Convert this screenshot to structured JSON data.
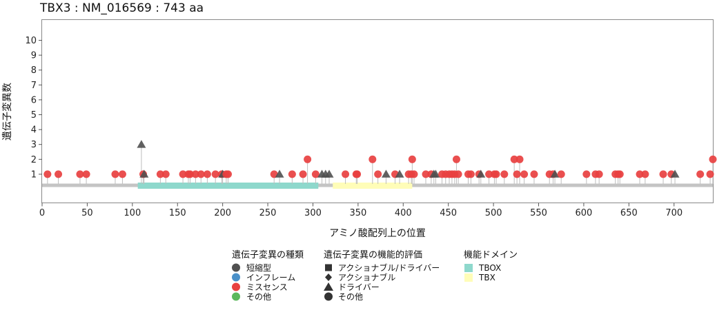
{
  "chart_data": {
    "type": "lollipop",
    "title": "TBX3 : NM_016569 : 743 aa",
    "xlabel": "アミノ酸配列上の位置",
    "ylabel": "遺伝子変異数",
    "xlim": [
      0,
      743
    ],
    "ylim": [
      0,
      10
    ],
    "x_ticks": [
      0,
      50,
      100,
      150,
      200,
      250,
      300,
      350,
      400,
      450,
      500,
      550,
      600,
      650,
      700
    ],
    "y_ticks": [
      1,
      2,
      3,
      4,
      5,
      6,
      7,
      8,
      9,
      10
    ],
    "protein_length": 743,
    "domains": [
      {
        "name": "TBOX",
        "start": 106,
        "end": 306,
        "color": "#8ED8CC"
      },
      {
        "name": "TBX",
        "start": 322,
        "end": 410,
        "color": "#FFFDB8"
      }
    ],
    "mutations": [
      {
        "pos": 6,
        "count": 1,
        "type": "missense",
        "shape": "circle"
      },
      {
        "pos": 18,
        "count": 1,
        "type": "missense",
        "shape": "circle"
      },
      {
        "pos": 42,
        "count": 1,
        "type": "missense",
        "shape": "circle"
      },
      {
        "pos": 49,
        "count": 1,
        "type": "missense",
        "shape": "circle"
      },
      {
        "pos": 81,
        "count": 1,
        "type": "missense",
        "shape": "circle"
      },
      {
        "pos": 89,
        "count": 1,
        "type": "missense",
        "shape": "circle"
      },
      {
        "pos": 110,
        "count": 3,
        "type": "truncating",
        "shape": "triangle"
      },
      {
        "pos": 112,
        "count": 1,
        "type": "missense",
        "shape": "circle"
      },
      {
        "pos": 113,
        "count": 1,
        "type": "truncating",
        "shape": "triangle"
      },
      {
        "pos": 131,
        "count": 1,
        "type": "missense",
        "shape": "circle"
      },
      {
        "pos": 137,
        "count": 1,
        "type": "missense",
        "shape": "circle"
      },
      {
        "pos": 156,
        "count": 1,
        "type": "missense",
        "shape": "circle"
      },
      {
        "pos": 162,
        "count": 1,
        "type": "missense",
        "shape": "circle"
      },
      {
        "pos": 164,
        "count": 1,
        "type": "missense",
        "shape": "circle"
      },
      {
        "pos": 170,
        "count": 1,
        "type": "missense",
        "shape": "circle"
      },
      {
        "pos": 176,
        "count": 1,
        "type": "missense",
        "shape": "circle"
      },
      {
        "pos": 183,
        "count": 1,
        "type": "missense",
        "shape": "circle"
      },
      {
        "pos": 192,
        "count": 1,
        "type": "missense",
        "shape": "circle"
      },
      {
        "pos": 199,
        "count": 1,
        "type": "missense",
        "shape": "circle"
      },
      {
        "pos": 200,
        "count": 1,
        "type": "truncating",
        "shape": "triangle"
      },
      {
        "pos": 204,
        "count": 1,
        "type": "missense",
        "shape": "circle"
      },
      {
        "pos": 206,
        "count": 1,
        "type": "missense",
        "shape": "circle"
      },
      {
        "pos": 257,
        "count": 1,
        "type": "missense",
        "shape": "circle"
      },
      {
        "pos": 263,
        "count": 1,
        "type": "truncating",
        "shape": "triangle"
      },
      {
        "pos": 277,
        "count": 1,
        "type": "missense",
        "shape": "circle"
      },
      {
        "pos": 289,
        "count": 1,
        "type": "missense",
        "shape": "circle"
      },
      {
        "pos": 294,
        "count": 2,
        "type": "missense",
        "shape": "circle"
      },
      {
        "pos": 303,
        "count": 1,
        "type": "missense",
        "shape": "circle"
      },
      {
        "pos": 310,
        "count": 1,
        "type": "truncating",
        "shape": "triangle"
      },
      {
        "pos": 314,
        "count": 1,
        "type": "truncating",
        "shape": "triangle"
      },
      {
        "pos": 318,
        "count": 1,
        "type": "truncating",
        "shape": "triangle"
      },
      {
        "pos": 336,
        "count": 1,
        "type": "missense",
        "shape": "circle"
      },
      {
        "pos": 348,
        "count": 1,
        "type": "missense",
        "shape": "circle"
      },
      {
        "pos": 349,
        "count": 1,
        "type": "missense",
        "shape": "circle"
      },
      {
        "pos": 366,
        "count": 2,
        "type": "missense",
        "shape": "circle"
      },
      {
        "pos": 372,
        "count": 1,
        "type": "missense",
        "shape": "circle"
      },
      {
        "pos": 381,
        "count": 1,
        "type": "truncating",
        "shape": "triangle"
      },
      {
        "pos": 391,
        "count": 1,
        "type": "missense",
        "shape": "circle"
      },
      {
        "pos": 396,
        "count": 1,
        "type": "truncating",
        "shape": "triangle"
      },
      {
        "pos": 406,
        "count": 1,
        "type": "missense",
        "shape": "circle"
      },
      {
        "pos": 409,
        "count": 1,
        "type": "missense",
        "shape": "circle"
      },
      {
        "pos": 410,
        "count": 2,
        "type": "missense",
        "shape": "circle"
      },
      {
        "pos": 412,
        "count": 1,
        "type": "missense",
        "shape": "circle"
      },
      {
        "pos": 425,
        "count": 1,
        "type": "missense",
        "shape": "circle"
      },
      {
        "pos": 431,
        "count": 1,
        "type": "missense",
        "shape": "circle"
      },
      {
        "pos": 434,
        "count": 1,
        "type": "truncating",
        "shape": "triangle"
      },
      {
        "pos": 436,
        "count": 1,
        "type": "truncating",
        "shape": "triangle"
      },
      {
        "pos": 443,
        "count": 1,
        "type": "missense",
        "shape": "circle"
      },
      {
        "pos": 447,
        "count": 1,
        "type": "missense",
        "shape": "circle"
      },
      {
        "pos": 451,
        "count": 1,
        "type": "missense",
        "shape": "circle"
      },
      {
        "pos": 454,
        "count": 1,
        "type": "missense",
        "shape": "circle"
      },
      {
        "pos": 457,
        "count": 1,
        "type": "missense",
        "shape": "circle"
      },
      {
        "pos": 459,
        "count": 2,
        "type": "missense",
        "shape": "circle"
      },
      {
        "pos": 461,
        "count": 1,
        "type": "missense",
        "shape": "circle"
      },
      {
        "pos": 472,
        "count": 1,
        "type": "missense",
        "shape": "circle"
      },
      {
        "pos": 475,
        "count": 1,
        "type": "missense",
        "shape": "circle"
      },
      {
        "pos": 484,
        "count": 1,
        "type": "missense",
        "shape": "circle"
      },
      {
        "pos": 486,
        "count": 1,
        "type": "truncating",
        "shape": "triangle"
      },
      {
        "pos": 495,
        "count": 1,
        "type": "missense",
        "shape": "circle"
      },
      {
        "pos": 501,
        "count": 1,
        "type": "missense",
        "shape": "circle"
      },
      {
        "pos": 503,
        "count": 1,
        "type": "missense",
        "shape": "circle"
      },
      {
        "pos": 512,
        "count": 1,
        "type": "missense",
        "shape": "circle"
      },
      {
        "pos": 523,
        "count": 2,
        "type": "missense",
        "shape": "circle"
      },
      {
        "pos": 526,
        "count": 1,
        "type": "missense",
        "shape": "circle"
      },
      {
        "pos": 529,
        "count": 2,
        "type": "missense",
        "shape": "circle"
      },
      {
        "pos": 534,
        "count": 1,
        "type": "missense",
        "shape": "circle"
      },
      {
        "pos": 545,
        "count": 1,
        "type": "missense",
        "shape": "circle"
      },
      {
        "pos": 562,
        "count": 1,
        "type": "missense",
        "shape": "circle"
      },
      {
        "pos": 566,
        "count": 1,
        "type": "missense",
        "shape": "circle"
      },
      {
        "pos": 568,
        "count": 1,
        "type": "truncating",
        "shape": "triangle"
      },
      {
        "pos": 575,
        "count": 1,
        "type": "missense",
        "shape": "circle"
      },
      {
        "pos": 603,
        "count": 1,
        "type": "missense",
        "shape": "circle"
      },
      {
        "pos": 613,
        "count": 1,
        "type": "missense",
        "shape": "circle"
      },
      {
        "pos": 617,
        "count": 1,
        "type": "missense",
        "shape": "circle"
      },
      {
        "pos": 635,
        "count": 1,
        "type": "missense",
        "shape": "circle"
      },
      {
        "pos": 638,
        "count": 1,
        "type": "missense",
        "shape": "circle"
      },
      {
        "pos": 640,
        "count": 1,
        "type": "missense",
        "shape": "circle"
      },
      {
        "pos": 662,
        "count": 1,
        "type": "missense",
        "shape": "circle"
      },
      {
        "pos": 668,
        "count": 1,
        "type": "missense",
        "shape": "circle"
      },
      {
        "pos": 688,
        "count": 1,
        "type": "missense",
        "shape": "circle"
      },
      {
        "pos": 697,
        "count": 1,
        "type": "missense",
        "shape": "circle"
      },
      {
        "pos": 701,
        "count": 1,
        "type": "truncating",
        "shape": "triangle"
      },
      {
        "pos": 729,
        "count": 1,
        "type": "missense",
        "shape": "circle"
      },
      {
        "pos": 740,
        "count": 1,
        "type": "missense",
        "shape": "circle"
      },
      {
        "pos": 743,
        "count": 2,
        "type": "missense",
        "shape": "circle"
      }
    ]
  },
  "legend": {
    "type_title": "遺伝子変異の種類",
    "type_items": [
      {
        "label": "短縮型",
        "color": "#505050"
      },
      {
        "label": "インフレーム",
        "color": "#4A90C8"
      },
      {
        "label": "ミスセンス",
        "color": "#E84040"
      },
      {
        "label": "その他",
        "color": "#5CB85C"
      }
    ],
    "function_title": "遺伝子変異の機能的評価",
    "function_items": [
      {
        "label": "アクショナブル/ドライバー",
        "shape": "square"
      },
      {
        "label": "アクショナブル",
        "shape": "diamond"
      },
      {
        "label": "ドライバー",
        "shape": "triangle"
      },
      {
        "label": "その他",
        "shape": "circle"
      }
    ],
    "domain_title": "機能ドメイン",
    "domain_items": [
      {
        "label": "TBOX",
        "color": "#8ED8CC"
      },
      {
        "label": "TBX",
        "color": "#FFFDB8"
      }
    ]
  },
  "colors": {
    "truncating": "#505050",
    "inframe": "#4A90C8",
    "missense": "#E84040",
    "other": "#5CB85C",
    "backbone": "#C4C4C4",
    "stem": "#BDBDBD"
  }
}
